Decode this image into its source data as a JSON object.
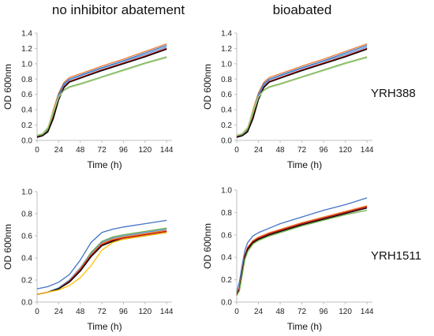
{
  "figure": {
    "titles": [
      "no inhibitor abatement",
      "bioabated"
    ],
    "strain_labels": [
      "YRH388",
      "YRH1511"
    ]
  },
  "chart_data": [
    {
      "type": "line",
      "title": "no inhibitor abatement",
      "xlabel": "Time (h)",
      "ylabel": "OD 600nm",
      "xlim": [
        0,
        150
      ],
      "ylim": [
        0,
        1.4
      ],
      "x_ticks": [
        "0",
        "24",
        "48",
        "72",
        "96",
        "120",
        "144"
      ],
      "y_ticks": [
        "0.0",
        "0.2",
        "0.4",
        "0.6",
        "0.8",
        "1.0",
        "1.2",
        "1.4"
      ],
      "grid": false,
      "x": [
        0,
        6,
        12,
        18,
        24,
        30,
        36,
        48,
        72,
        96,
        120,
        144
      ],
      "series": [
        {
          "color": "#ed7d31",
          "values": [
            0.06,
            0.08,
            0.16,
            0.4,
            0.62,
            0.76,
            0.82,
            0.87,
            0.97,
            1.06,
            1.16,
            1.26
          ]
        },
        {
          "color": "#4472c4",
          "values": [
            0.05,
            0.07,
            0.14,
            0.36,
            0.6,
            0.74,
            0.8,
            0.85,
            0.95,
            1.04,
            1.14,
            1.24
          ]
        },
        {
          "color": "#5b9bd5",
          "values": [
            0.05,
            0.07,
            0.14,
            0.34,
            0.58,
            0.72,
            0.79,
            0.84,
            0.94,
            1.03,
            1.12,
            1.22
          ]
        },
        {
          "color": "#c00000",
          "values": [
            0.05,
            0.06,
            0.12,
            0.3,
            0.55,
            0.7,
            0.77,
            0.82,
            0.92,
            1.01,
            1.1,
            1.2
          ]
        },
        {
          "color": "#000000",
          "values": [
            0.04,
            0.06,
            0.11,
            0.28,
            0.53,
            0.69,
            0.76,
            0.81,
            0.91,
            1.0,
            1.09,
            1.19
          ]
        },
        {
          "color": "#70ad47",
          "values": [
            0.06,
            0.08,
            0.15,
            0.35,
            0.56,
            0.66,
            0.7,
            0.74,
            0.83,
            0.92,
            1.01,
            1.09
          ]
        },
        {
          "color": "#a9d18e",
          "values": [
            0.07,
            0.09,
            0.17,
            0.38,
            0.57,
            0.65,
            0.69,
            0.73,
            0.82,
            0.91,
            1.0,
            1.08
          ]
        }
      ]
    },
    {
      "type": "line",
      "title": "bioabated",
      "xlabel": "Time (h)",
      "ylabel": "OD 600nm",
      "xlim": [
        0,
        150
      ],
      "ylim": [
        0,
        1.4
      ],
      "x_ticks": [
        "0",
        "24",
        "48",
        "72",
        "96",
        "120",
        "144"
      ],
      "y_ticks": [
        "0.0",
        "0.2",
        "0.4",
        "0.6",
        "0.8",
        "1.0",
        "1.2",
        "1.4"
      ],
      "grid": false,
      "x": [
        0,
        6,
        12,
        18,
        24,
        30,
        36,
        48,
        72,
        96,
        120,
        144
      ],
      "series": [
        {
          "color": "#ed7d31",
          "values": [
            0.06,
            0.08,
            0.16,
            0.4,
            0.62,
            0.76,
            0.82,
            0.87,
            0.97,
            1.06,
            1.16,
            1.26
          ]
        },
        {
          "color": "#4472c4",
          "values": [
            0.05,
            0.07,
            0.14,
            0.36,
            0.6,
            0.74,
            0.8,
            0.85,
            0.95,
            1.04,
            1.14,
            1.24
          ]
        },
        {
          "color": "#5b9bd5",
          "values": [
            0.05,
            0.07,
            0.14,
            0.34,
            0.58,
            0.72,
            0.79,
            0.84,
            0.94,
            1.03,
            1.12,
            1.22
          ]
        },
        {
          "color": "#c00000",
          "values": [
            0.05,
            0.06,
            0.12,
            0.3,
            0.55,
            0.7,
            0.77,
            0.82,
            0.92,
            1.01,
            1.1,
            1.2
          ]
        },
        {
          "color": "#000000",
          "values": [
            0.04,
            0.06,
            0.11,
            0.28,
            0.53,
            0.69,
            0.76,
            0.81,
            0.91,
            1.0,
            1.09,
            1.19
          ]
        },
        {
          "color": "#70ad47",
          "values": [
            0.06,
            0.08,
            0.15,
            0.35,
            0.56,
            0.66,
            0.7,
            0.74,
            0.83,
            0.92,
            1.01,
            1.09
          ]
        },
        {
          "color": "#a9d18e",
          "values": [
            0.07,
            0.09,
            0.17,
            0.38,
            0.57,
            0.65,
            0.69,
            0.73,
            0.82,
            0.91,
            1.0,
            1.08
          ]
        }
      ]
    },
    {
      "type": "line",
      "title": "",
      "xlabel": "Time (h)",
      "ylabel": "OD 600nm",
      "xlim": [
        0,
        150
      ],
      "ylim": [
        0,
        1.0
      ],
      "x_ticks": [
        "0",
        "24",
        "48",
        "72",
        "96",
        "120",
        "144"
      ],
      "y_ticks": [
        "0.0",
        "0.2",
        "0.4",
        "0.6",
        "0.8",
        "1.0"
      ],
      "grid": false,
      "x": [
        0,
        12,
        24,
        36,
        48,
        60,
        72,
        84,
        96,
        120,
        144
      ],
      "series": [
        {
          "color": "#4472c4",
          "values": [
            0.12,
            0.14,
            0.18,
            0.25,
            0.38,
            0.54,
            0.63,
            0.66,
            0.68,
            0.71,
            0.74
          ]
        },
        {
          "color": "#70ad47",
          "values": [
            0.07,
            0.09,
            0.13,
            0.2,
            0.31,
            0.45,
            0.55,
            0.59,
            0.61,
            0.64,
            0.67
          ]
        },
        {
          "color": "#5b9bd5",
          "values": [
            0.07,
            0.09,
            0.13,
            0.2,
            0.31,
            0.44,
            0.54,
            0.58,
            0.6,
            0.63,
            0.66
          ]
        },
        {
          "color": "#ed7d31",
          "values": [
            0.07,
            0.09,
            0.12,
            0.19,
            0.3,
            0.43,
            0.53,
            0.57,
            0.59,
            0.62,
            0.65
          ]
        },
        {
          "color": "#c00000",
          "values": [
            0.07,
            0.09,
            0.12,
            0.19,
            0.29,
            0.42,
            0.52,
            0.56,
            0.58,
            0.61,
            0.64
          ]
        },
        {
          "color": "#000000",
          "values": [
            0.07,
            0.09,
            0.12,
            0.18,
            0.28,
            0.41,
            0.51,
            0.55,
            0.57,
            0.6,
            0.63
          ]
        },
        {
          "color": "#ffc000",
          "values": [
            0.07,
            0.09,
            0.11,
            0.15,
            0.22,
            0.33,
            0.47,
            0.54,
            0.57,
            0.6,
            0.63
          ]
        }
      ]
    },
    {
      "type": "line",
      "title": "",
      "xlabel": "Time (h)",
      "ylabel": "OD 600nm",
      "xlim": [
        0,
        150
      ],
      "ylim": [
        0,
        1.0
      ],
      "x_ticks": [
        "0",
        "24",
        "48",
        "72",
        "96",
        "120",
        "144"
      ],
      "y_ticks": [
        "0.0",
        "0.2",
        "0.4",
        "0.6",
        "0.8",
        "1.0"
      ],
      "grid": false,
      "x": [
        0,
        3,
        6,
        9,
        12,
        18,
        24,
        36,
        48,
        72,
        96,
        120,
        144
      ],
      "series": [
        {
          "color": "#4472c4",
          "values": [
            0.09,
            0.18,
            0.33,
            0.46,
            0.53,
            0.59,
            0.62,
            0.66,
            0.7,
            0.76,
            0.82,
            0.87,
            0.93
          ]
        },
        {
          "color": "#ed7d31",
          "values": [
            0.07,
            0.13,
            0.28,
            0.42,
            0.49,
            0.55,
            0.58,
            0.62,
            0.65,
            0.71,
            0.76,
            0.81,
            0.86
          ]
        },
        {
          "color": "#c00000",
          "values": [
            0.07,
            0.12,
            0.27,
            0.41,
            0.48,
            0.54,
            0.57,
            0.61,
            0.64,
            0.7,
            0.75,
            0.8,
            0.85
          ]
        },
        {
          "color": "#000000",
          "values": [
            0.06,
            0.11,
            0.26,
            0.4,
            0.47,
            0.53,
            0.56,
            0.6,
            0.63,
            0.69,
            0.74,
            0.79,
            0.84
          ]
        },
        {
          "color": "#70ad47",
          "values": [
            0.06,
            0.1,
            0.24,
            0.38,
            0.45,
            0.52,
            0.55,
            0.59,
            0.62,
            0.68,
            0.73,
            0.78,
            0.82
          ]
        }
      ]
    }
  ]
}
